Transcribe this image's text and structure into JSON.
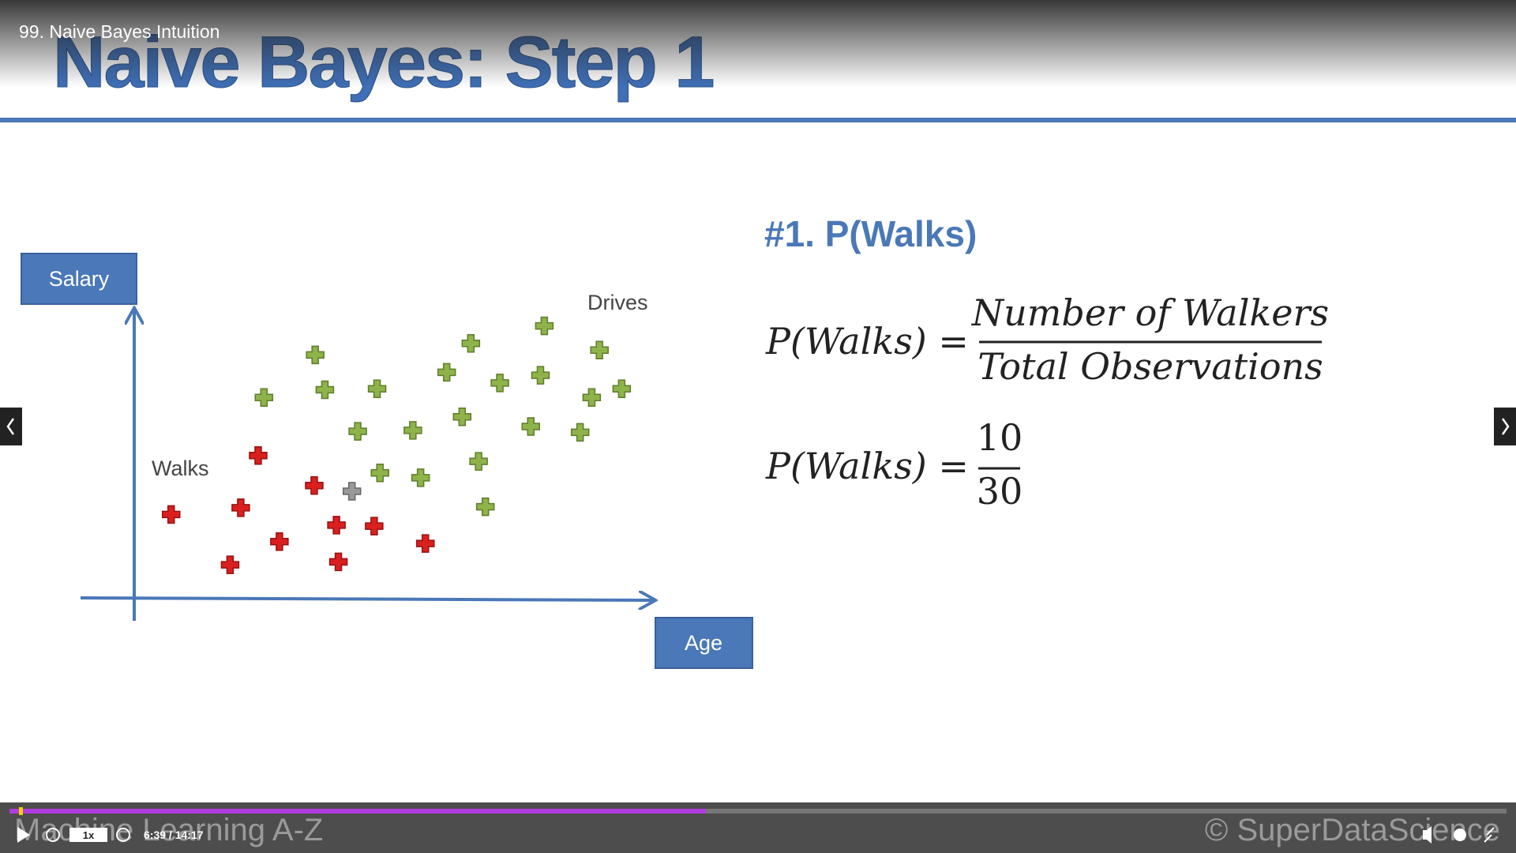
{
  "player": {
    "lecture_title": "99. Naive Bayes Intuition",
    "speed": "1x",
    "time": "6:39 / 14:17"
  },
  "slide": {
    "title": "Naive Bayes: Step 1",
    "step_heading": "#1. P(Walks)",
    "plot": {
      "y_axis_label": "Salary",
      "x_axis_label": "Age",
      "group_labels": [
        "Drives",
        "Walks"
      ]
    },
    "formula": {
      "lhs": "P(Walks) =",
      "numerator": "Number of Walkers",
      "denominator": "Total Observations"
    },
    "result": {
      "lhs": "P(Walks) =",
      "numerator": "10",
      "denominator": "30"
    },
    "footer_left": "Machine Learning A-Z",
    "footer_right": "© SuperDataScience"
  }
}
